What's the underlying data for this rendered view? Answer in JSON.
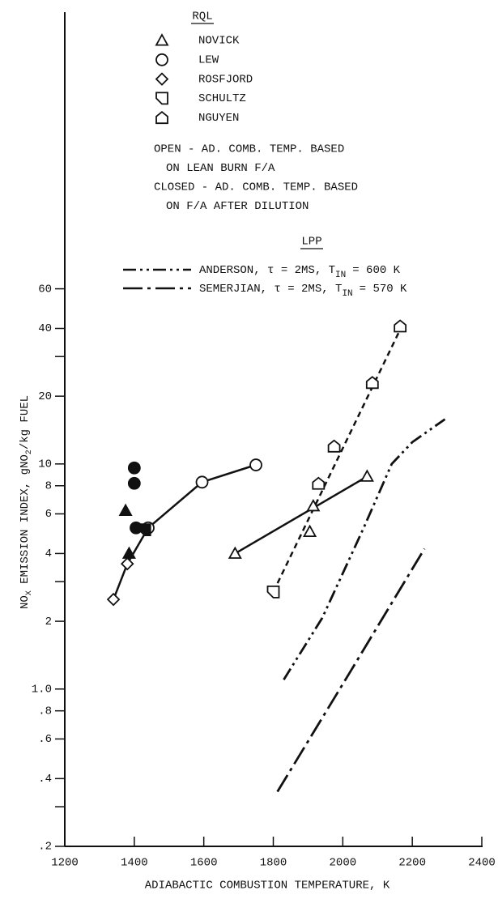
{
  "chart_data": {
    "type": "scatter",
    "xlabel": "ADIABACTIC COMBUSTION TEMPERATURE, K",
    "ylabel_parts": [
      {
        "text": "NO"
      },
      {
        "text": "X",
        "sub": true
      },
      {
        "text": " EMISSION INDEX, gNO"
      },
      {
        "text": "2",
        "sub": true
      },
      {
        "text": "/kg FUEL"
      }
    ],
    "xlim": [
      1200,
      2400
    ],
    "ylim": [
      0.2,
      1000
    ],
    "log_y": true,
    "xticks": [
      1200,
      1400,
      1600,
      1800,
      2000,
      2200,
      2400
    ],
    "yticks": [
      60,
      40,
      20,
      10,
      8,
      6,
      4,
      2,
      {
        "value": 1,
        "label": "1.0"
      },
      {
        "value": 0.8,
        "label": ".8"
      },
      {
        "value": 0.6,
        "label": ".6"
      },
      {
        "value": 0.4,
        "label": ".4"
      },
      {
        "value": 0.2,
        "label": ".2"
      }
    ],
    "yminorticks": [
      30,
      3,
      0.3
    ],
    "rql_title": "RQL",
    "lpp_title": "LPP",
    "notes": [
      "OPEN - AD. COMB. TEMP. BASED",
      "ON LEAN BURN F/A",
      "CLOSED - AD. COMB. TEMP. BASED",
      "ON F/A AFTER DILUTION"
    ],
    "series": [
      {
        "name": "NOVICK",
        "marker": "triangle",
        "open": {
          "x": [
            1690,
            1905,
            1915,
            2070
          ],
          "values": [
            4.0,
            5.0,
            6.5,
            8.8
          ]
        },
        "closed": {
          "x": [
            1375,
            1385
          ],
          "values": [
            6.2,
            4.0
          ]
        }
      },
      {
        "name": "LEW",
        "marker": "circle",
        "open": {
          "x": [
            1440,
            1595,
            1750
          ],
          "values": [
            5.2,
            8.3,
            9.9
          ]
        },
        "closed": {
          "x": [
            1400,
            1400,
            1405
          ],
          "values": [
            9.6,
            8.2,
            5.2
          ]
        }
      },
      {
        "name": "ROSFJORD",
        "marker": "diamond",
        "open": {
          "x": [
            1340,
            1380
          ],
          "values": [
            2.5,
            3.6
          ]
        },
        "closed": {
          "x": [],
          "values": []
        }
      },
      {
        "name": "SCHULTZ",
        "marker": "flag",
        "open": {
          "x": [
            1800
          ],
          "values": [
            2.7
          ]
        },
        "closed": {
          "x": [
            1430
          ],
          "values": [
            5.1
          ]
        }
      },
      {
        "name": "NGUYEN",
        "marker": "pentagon",
        "open": {
          "x": [
            1930,
            1975,
            2085,
            2165
          ],
          "values": [
            8.2,
            12,
            23,
            41
          ]
        },
        "closed": {
          "x": [],
          "values": []
        }
      }
    ],
    "fit_lines": [
      {
        "style": "solid",
        "x": [
          1340,
          1380,
          1440,
          1595,
          1750
        ],
        "values": [
          2.5,
          3.6,
          5.2,
          8.3,
          9.9
        ]
      },
      {
        "style": "solid",
        "x": [
          1690,
          2070
        ],
        "values": [
          4.0,
          8.8
        ]
      },
      {
        "style": "dashed",
        "x": [
          1800,
          2170
        ],
        "values": [
          2.7,
          41
        ]
      }
    ],
    "lpp_series": [
      {
        "name": "ANDERSON, τ = 2MS, T",
        "name_sub": "IN",
        "name_rest": "= 600 K",
        "dash": "dash-dot-dot",
        "x": [
          1830,
          1941,
          2059,
          2141,
          2200,
          2294
        ],
        "values": [
          1.1,
          2.07,
          5.16,
          10,
          12.5,
          15.8
        ]
      },
      {
        "name": "SEMERJIAN, τ = 2MS, T",
        "name_sub": "IN",
        "name_rest": "= 570 K",
        "dash": "long-dash-dot",
        "x": [
          1812,
          2024,
          2235
        ],
        "values": [
          0.35,
          1.21,
          4.2
        ]
      }
    ]
  }
}
